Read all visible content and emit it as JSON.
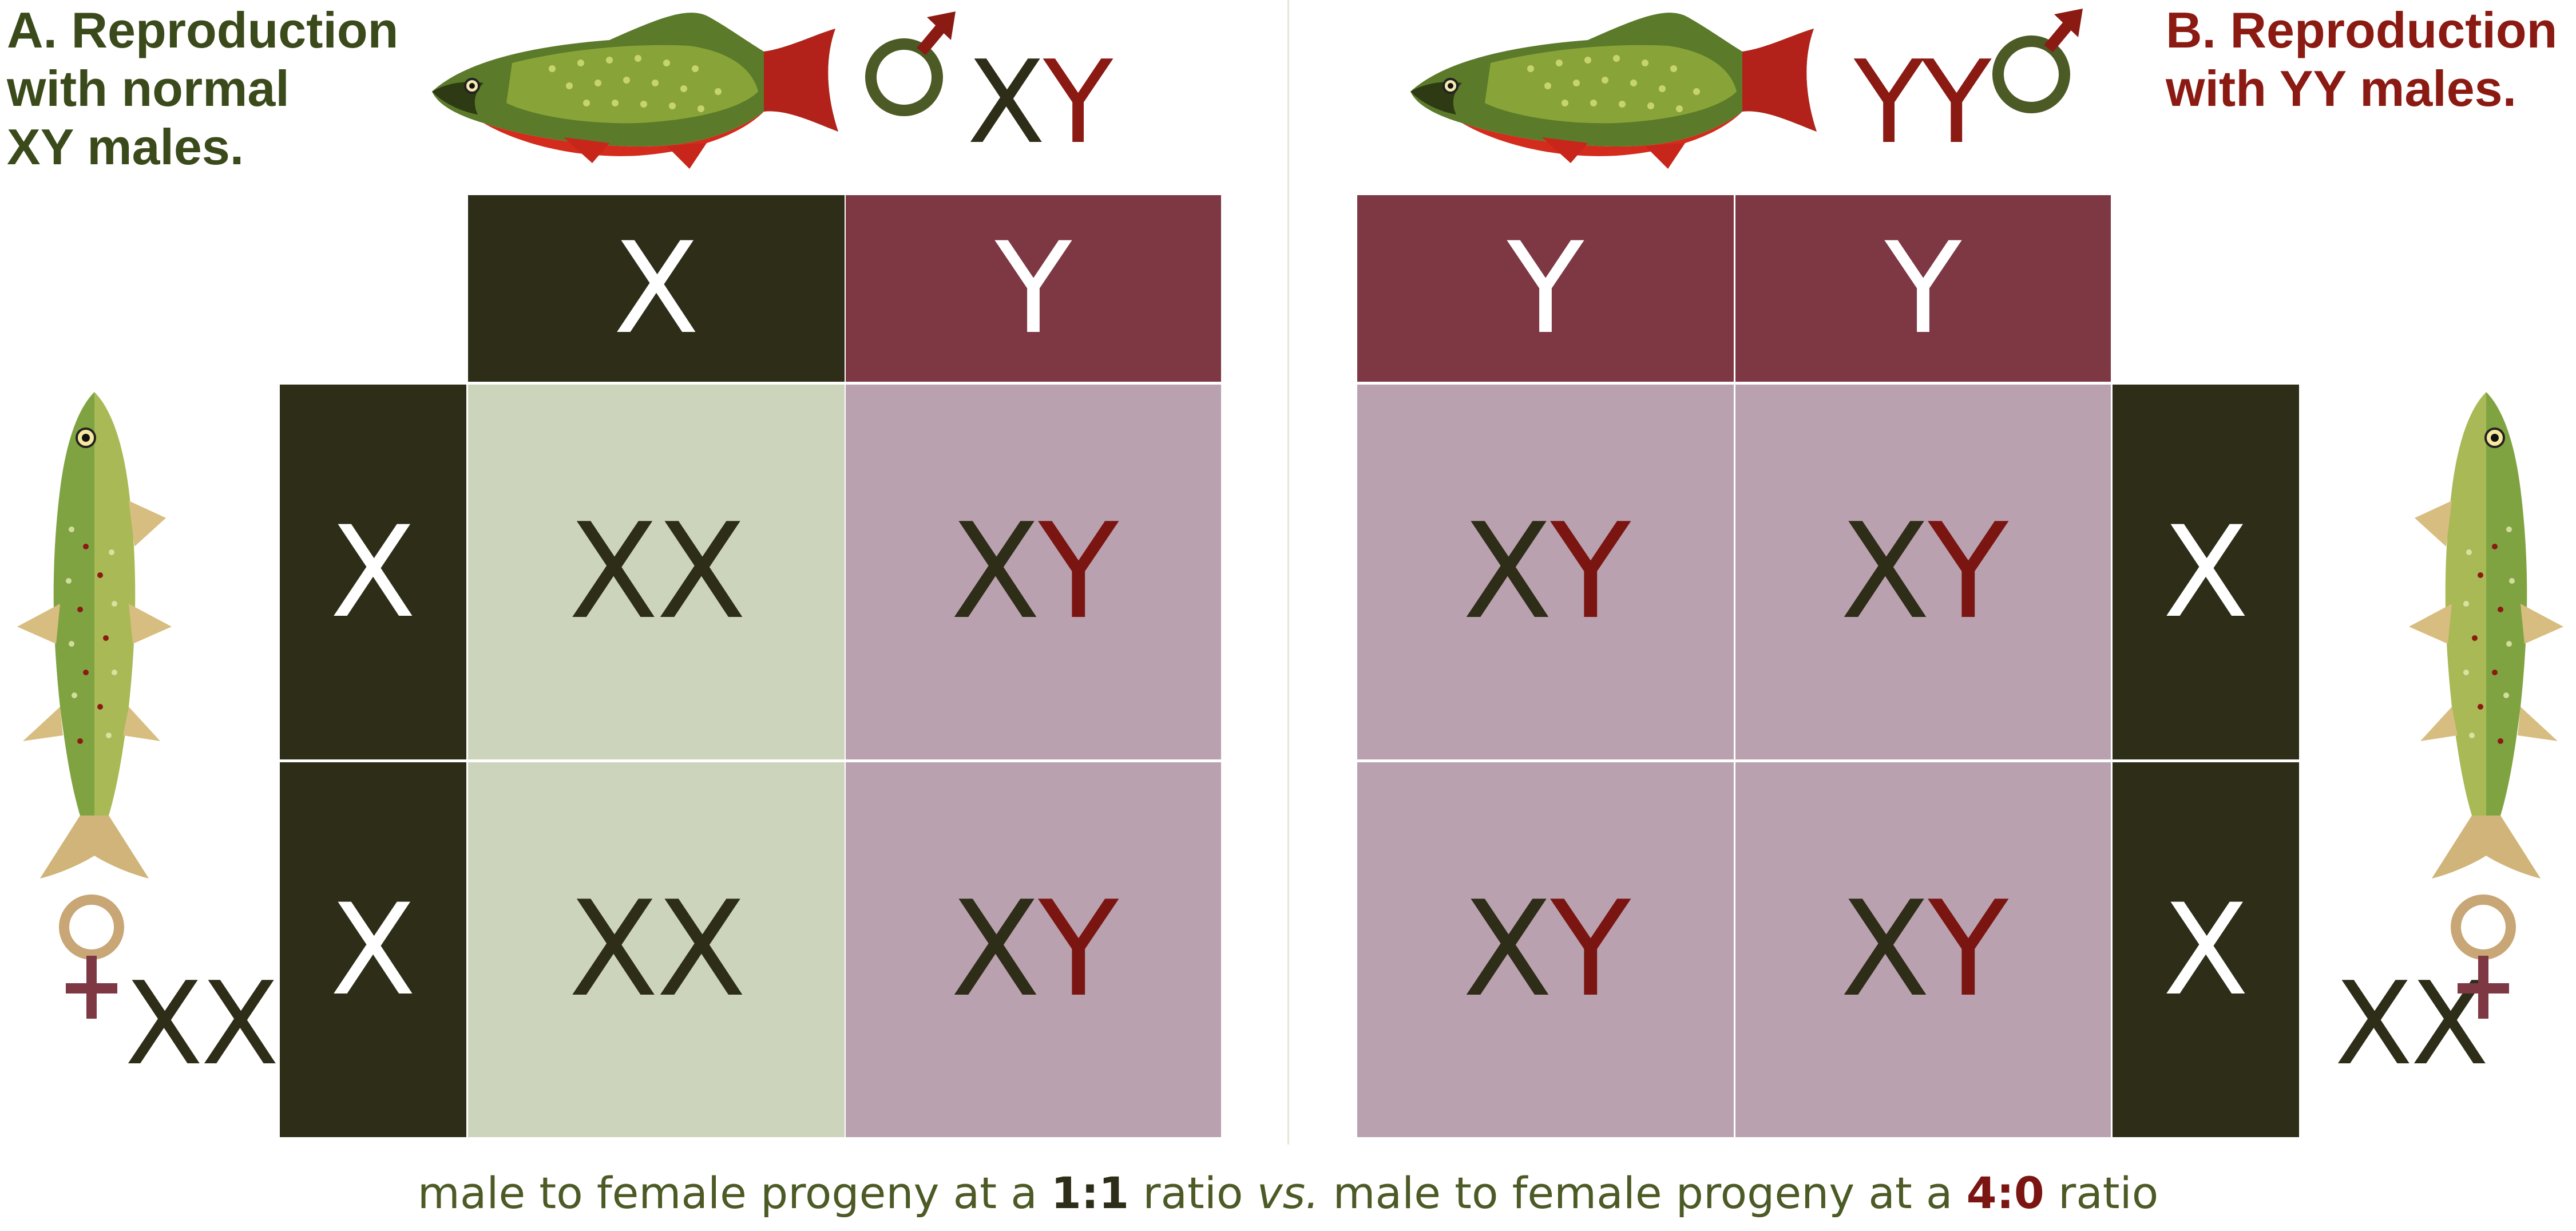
{
  "colors": {
    "x_dark": "#2d2d18",
    "y_dark": "#7d3844",
    "xx_cell": "#cdd4bc",
    "xy_cell": "#b9a1af",
    "x_letter": "#2d2d18",
    "y_letter": "#7a1512",
    "title_a": "#3b4a1b",
    "title_b": "#8b1a13",
    "footer_green": "#4c5a25",
    "male_symbol_ring": "#4c5a25",
    "male_symbol_arrow": "#8b1a13",
    "female_symbol_ring": "#c8a676",
    "female_symbol_cross": "#7d3844"
  },
  "panel_a": {
    "title_line1": "A. Reproduction",
    "title_line2": "with normal",
    "title_line3": "XY males.",
    "male_label_x": "X",
    "male_label_y": "Y",
    "female_label": "XX",
    "col_headers": [
      "X",
      "Y"
    ],
    "row_headers": [
      "X",
      "X"
    ],
    "cells": [
      [
        {
          "a": "X",
          "b": "X"
        },
        {
          "a": "X",
          "b": "Y"
        }
      ],
      [
        {
          "a": "X",
          "b": "X"
        },
        {
          "a": "X",
          "b": "Y"
        }
      ]
    ]
  },
  "panel_b": {
    "title_line1": "B. Reproduction",
    "title_line2": "with YY males.",
    "male_label": "YY",
    "female_label": "XX",
    "col_headers": [
      "Y",
      "Y"
    ],
    "row_headers": [
      "X",
      "X"
    ],
    "cells": [
      [
        {
          "a": "X",
          "b": "Y"
        },
        {
          "a": "X",
          "b": "Y"
        }
      ],
      [
        {
          "a": "X",
          "b": "Y"
        },
        {
          "a": "X",
          "b": "Y"
        }
      ]
    ]
  },
  "footer": {
    "part1": "male to female progeny at a ",
    "ratio_a": "1:1",
    "part2": " ratio ",
    "vs": "vs.",
    "part3": " male to female progeny at a ",
    "ratio_b": "4:0",
    "part4": " ratio"
  },
  "icons": {
    "male_trout": "brook-trout-male-icon",
    "female_trout": "brook-trout-female-icon",
    "male_symbol": "male-symbol-icon",
    "female_symbol": "female-symbol-icon"
  }
}
